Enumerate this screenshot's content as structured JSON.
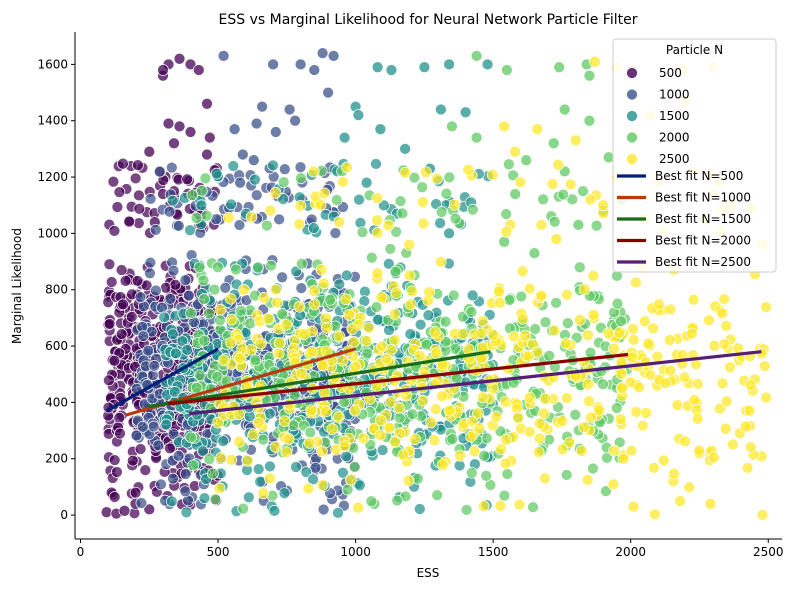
{
  "chart_data": {
    "type": "scatter",
    "title": "ESS vs Marginal Likelihood for Neural Network Particle Filter",
    "xlabel": "ESS",
    "ylabel": "Marginal Likelihood",
    "xlim": [
      -20,
      2550
    ],
    "ylim": [
      -85,
      1715
    ],
    "xticks": [
      0,
      500,
      1000,
      1500,
      2000,
      2500
    ],
    "yticks": [
      0,
      200,
      400,
      600,
      800,
      1000,
      1200,
      1400,
      1600
    ],
    "grid": false,
    "legend_placement": "top-right",
    "legend_title": "Particle N",
    "point_groups": [
      {
        "name": "500",
        "color": "#440154",
        "ess_range": [
          100,
          500
        ],
        "ml_core": [
          0,
          1000
        ],
        "points": [
          [
            95,
            10
          ],
          [
            130,
            5
          ],
          [
            160,
            15
          ],
          [
            300,
            1560
          ],
          [
            320,
            1600
          ],
          [
            360,
            1620
          ],
          [
            300,
            1580
          ],
          [
            400,
            1600
          ],
          [
            430,
            1580
          ],
          [
            460,
            1460
          ],
          [
            320,
            1390
          ],
          [
            360,
            1380
          ],
          [
            340,
            1320
          ],
          [
            400,
            1360
          ],
          [
            470,
            1340
          ],
          [
            460,
            1280
          ],
          [
            250,
            1290
          ],
          [
            290,
            1220
          ],
          [
            300,
            1140
          ],
          [
            340,
            1150
          ],
          [
            270,
            1040
          ],
          [
            440,
            1080
          ],
          [
            200,
            40
          ],
          [
            250,
            20
          ]
        ]
      },
      {
        "name": "1000",
        "color": "#3b528b",
        "ess_range": [
          200,
          1000
        ],
        "ml_core": [
          0,
          1000
        ],
        "points": [
          [
            520,
            1630
          ],
          [
            700,
            1600
          ],
          [
            880,
            1640
          ],
          [
            800,
            1600
          ],
          [
            920,
            1630
          ],
          [
            850,
            1580
          ],
          [
            660,
            1450
          ],
          [
            760,
            1440
          ],
          [
            780,
            1400
          ],
          [
            900,
            1500
          ],
          [
            560,
            1370
          ],
          [
            640,
            1390
          ],
          [
            710,
            1360
          ],
          [
            590,
            1280
          ],
          [
            500,
            1200
          ],
          [
            580,
            1180
          ],
          [
            540,
            1090
          ],
          [
            600,
            1060
          ],
          [
            630,
            1260
          ]
        ]
      },
      {
        "name": "1500",
        "color": "#21918c",
        "ess_range": [
          300,
          1500
        ],
        "ml_core": [
          0,
          1000
        ],
        "points": [
          [
            1080,
            1590
          ],
          [
            1130,
            1580
          ],
          [
            1250,
            1590
          ],
          [
            1340,
            1600
          ],
          [
            1480,
            1600
          ],
          [
            1000,
            1450
          ],
          [
            1010,
            1420
          ],
          [
            1310,
            1440
          ],
          [
            1400,
            1430
          ],
          [
            960,
            1340
          ],
          [
            1090,
            1370
          ],
          [
            1180,
            1300
          ],
          [
            1270,
            1230
          ],
          [
            1040,
            1180
          ],
          [
            1420,
            1110
          ],
          [
            1150,
            1070
          ],
          [
            1340,
            1000
          ]
        ]
      },
      {
        "name": "2000",
        "color": "#5ec962",
        "ess_range": [
          400,
          2000
        ],
        "ml_core": [
          0,
          1000
        ],
        "points": [
          [
            1440,
            1630
          ],
          [
            1550,
            1580
          ],
          [
            1740,
            1590
          ],
          [
            1840,
            1600
          ],
          [
            1850,
            1560
          ],
          [
            1760,
            1440
          ],
          [
            1850,
            1400
          ],
          [
            1920,
            1270
          ],
          [
            1620,
            1260
          ],
          [
            1720,
            1320
          ],
          [
            1760,
            1220
          ],
          [
            1580,
            1140
          ],
          [
            1350,
            1380
          ],
          [
            1440,
            1340
          ],
          [
            1900,
            1080
          ],
          [
            1810,
            1030
          ],
          [
            1540,
            970
          ],
          [
            1650,
            930
          ]
        ]
      },
      {
        "name": "2500",
        "color": "#fde725",
        "ess_range": [
          500,
          2500
        ],
        "ml_core": [
          0,
          1000
        ],
        "points": [
          [
            1870,
            1610
          ],
          [
            1950,
            1590
          ],
          [
            2190,
            1580
          ],
          [
            2300,
            1590
          ],
          [
            2200,
            1470
          ],
          [
            2070,
            1420
          ],
          [
            2010,
            1350
          ],
          [
            1800,
            1330
          ],
          [
            1660,
            1370
          ],
          [
            1540,
            1380
          ],
          [
            1580,
            1290
          ],
          [
            1950,
            1200
          ],
          [
            2100,
            1180
          ],
          [
            2230,
            1220
          ],
          [
            2300,
            1140
          ],
          [
            2440,
            1090
          ],
          [
            2050,
            1050
          ],
          [
            1900,
            1100
          ],
          [
            2270,
            1050
          ],
          [
            1730,
            980
          ],
          [
            2480,
            960
          ],
          [
            2010,
            30
          ],
          [
            2180,
            50
          ],
          [
            2290,
            40
          ]
        ]
      }
    ],
    "fit_lines": [
      {
        "name": "Best fit N=500",
        "color": "#001f7a",
        "x": [
          95,
          500
        ],
        "y": [
          370,
          590
        ]
      },
      {
        "name": "Best fit N=1000",
        "color": "#b83b0e",
        "x": [
          165,
          1000
        ],
        "y": [
          355,
          590
        ]
      },
      {
        "name": "Best fit N=1500",
        "color": "#1a6b1a",
        "x": [
          245,
          1490
        ],
        "y": [
          385,
          580
        ]
      },
      {
        "name": "Best fit N=2000",
        "color": "#8b0000",
        "x": [
          320,
          1990
        ],
        "y": [
          395,
          570
        ]
      },
      {
        "name": "Best fit N=2500",
        "color": "#561f75",
        "x": [
          395,
          2475
        ],
        "y": [
          360,
          580
        ]
      }
    ]
  }
}
